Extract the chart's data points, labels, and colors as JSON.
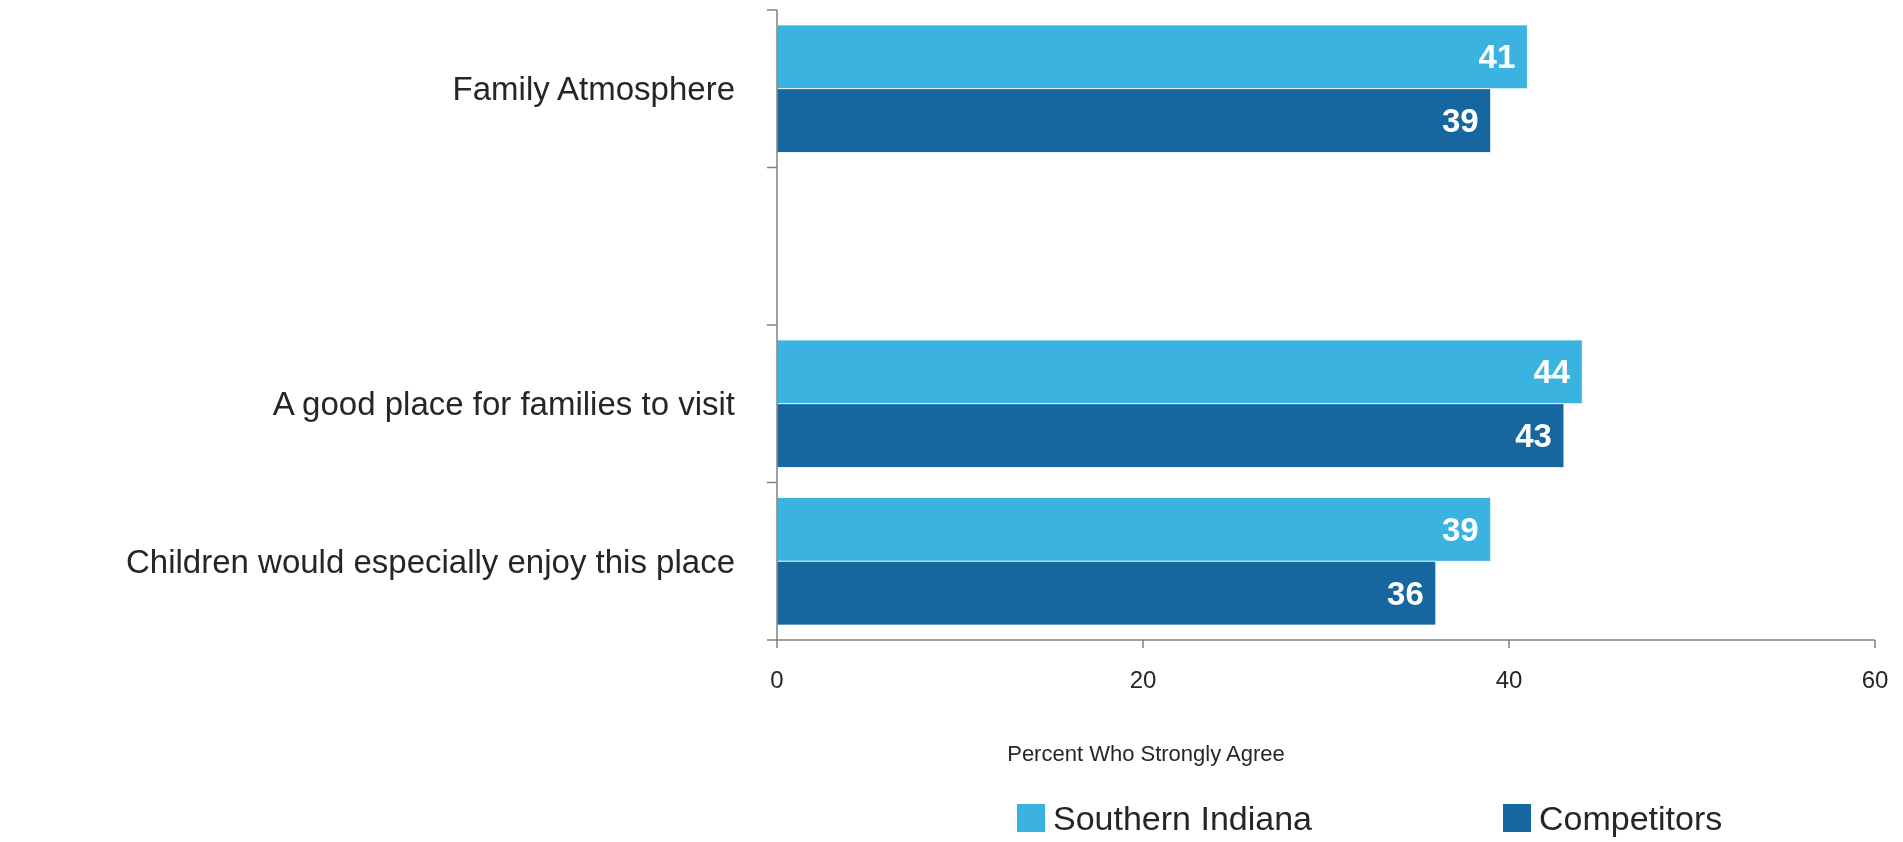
{
  "chart_data": {
    "type": "bar",
    "orientation": "horizontal",
    "categories": [
      "Family Atmosphere",
      null,
      "A good place for families to visit",
      "Children would especially enjoy this place"
    ],
    "series": [
      {
        "name": "Southern Indiana",
        "color": "#3bb3e0",
        "values": [
          41,
          null,
          44,
          39
        ]
      },
      {
        "name": "Competitors",
        "color": "#16669f",
        "values": [
          39,
          null,
          43,
          36
        ]
      }
    ],
    "xlim": [
      0,
      60
    ],
    "xticks": [
      0,
      20,
      40,
      60
    ],
    "xlabel": "Percent Who Strongly Agree",
    "data_labels": true,
    "legend": "bottom",
    "grid": false
  }
}
